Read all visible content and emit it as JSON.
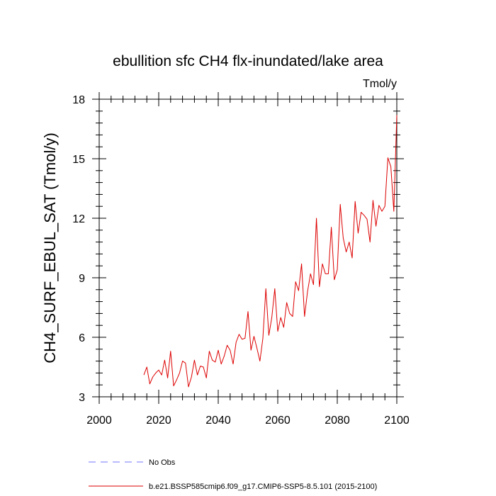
{
  "chart_data": {
    "type": "line",
    "title": "ebullition sfc CH4 flx-inundated/lake area",
    "units": "Tmol/y",
    "ylabel": "CH4_SURF_EBUL_SAT  (Tmol/y)",
    "xlabel": "",
    "xlim": [
      2000,
      2100
    ],
    "ylim": [
      3,
      18
    ],
    "xticks": [
      2000,
      2020,
      2040,
      2060,
      2080,
      2100
    ],
    "yticks": [
      3,
      6,
      9,
      12,
      15,
      18
    ],
    "grid": false,
    "legend_position": "bottom-left",
    "legend": [
      {
        "label": "No Obs",
        "color": "#7777ff",
        "style": "dashed"
      },
      {
        "label": "b.e21.BSSP585cmip6.f09_g17.CMIP6-SSP5-8.5.101 (2015-2100)",
        "color": "#dd0000",
        "style": "solid"
      }
    ],
    "series": [
      {
        "name": "b.e21.BSSP585cmip6.f09_g17.CMIP6-SSP5-8.5.101 (2015-2100)",
        "color": "#dd0000",
        "x": [
          2015,
          2016,
          2017,
          2018,
          2019,
          2020,
          2021,
          2022,
          2023,
          2024,
          2025,
          2026,
          2027,
          2028,
          2029,
          2030,
          2031,
          2032,
          2033,
          2034,
          2035,
          2036,
          2037,
          2038,
          2039,
          2040,
          2041,
          2042,
          2043,
          2044,
          2045,
          2046,
          2047,
          2048,
          2049,
          2050,
          2051,
          2052,
          2053,
          2054,
          2055,
          2056,
          2057,
          2058,
          2059,
          2060,
          2061,
          2062,
          2063,
          2064,
          2065,
          2066,
          2067,
          2068,
          2069,
          2070,
          2071,
          2072,
          2073,
          2074,
          2075,
          2076,
          2077,
          2078,
          2079,
          2080,
          2081,
          2082,
          2083,
          2084,
          2085,
          2086,
          2087,
          2088,
          2089,
          2090,
          2091,
          2092,
          2093,
          2094,
          2095,
          2096,
          2097,
          2098,
          2099,
          2100
        ],
        "y": [
          4.1,
          4.5,
          3.65,
          4.0,
          4.2,
          4.35,
          4.1,
          4.85,
          3.95,
          5.3,
          3.55,
          3.85,
          4.2,
          4.8,
          4.7,
          3.5,
          4.0,
          4.85,
          4.1,
          4.55,
          4.5,
          3.95,
          5.3,
          4.85,
          4.75,
          5.35,
          4.65,
          5.05,
          5.6,
          5.35,
          4.65,
          5.75,
          6.15,
          5.9,
          5.95,
          7.3,
          5.35,
          6.05,
          5.45,
          4.8,
          5.95,
          8.45,
          6.1,
          7.0,
          8.45,
          6.3,
          7.0,
          6.5,
          7.75,
          7.2,
          7.05,
          8.8,
          8.35,
          9.7,
          7.05,
          8.3,
          9.2,
          8.65,
          12.0,
          8.55,
          9.7,
          9.2,
          9.2,
          11.55,
          8.9,
          9.4,
          12.7,
          11.0,
          10.3,
          10.8,
          10.0,
          12.85,
          11.25,
          12.3,
          12.15,
          11.95,
          10.8,
          12.9,
          11.6,
          12.65,
          12.35,
          12.6,
          15.05,
          14.6,
          12.35,
          17.2
        ]
      }
    ]
  }
}
